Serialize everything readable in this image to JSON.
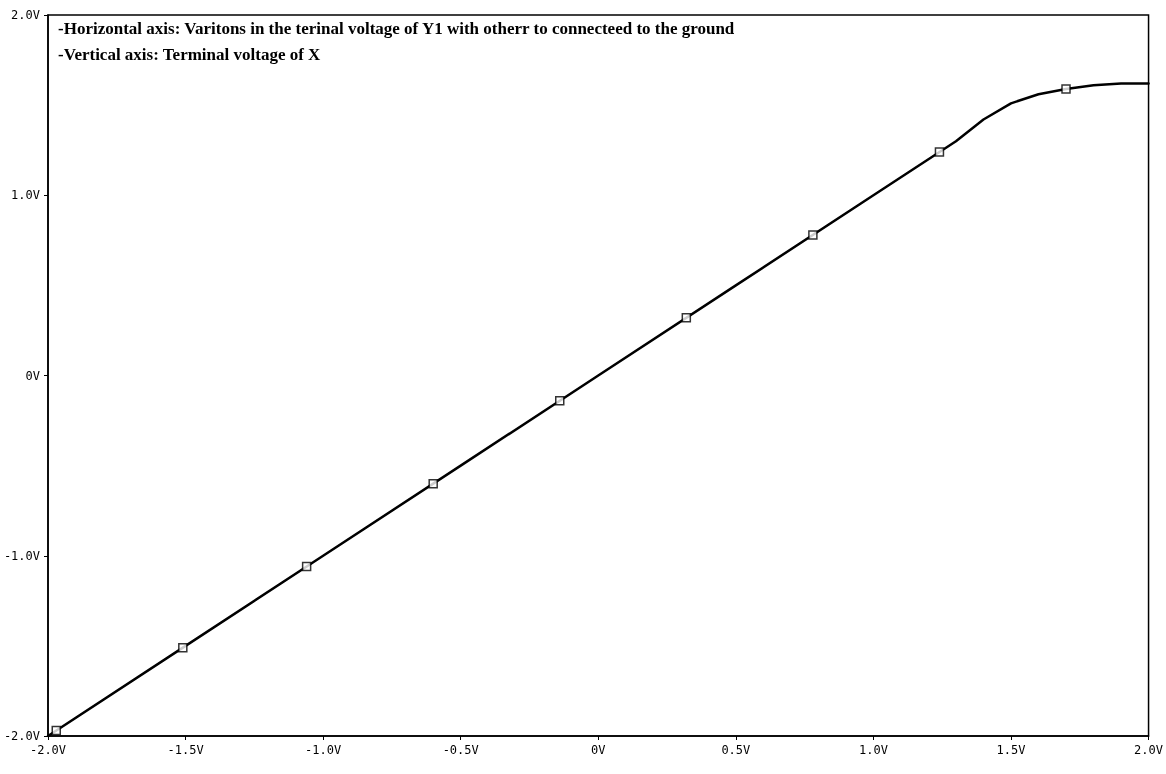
{
  "chart_data": {
    "type": "line",
    "annotations": [
      "-Horizontal axis: Varitons in the terinal voltage of Y1 with otherr to connecteed to the ground",
      "-Vertical axis: Terminal voltage of X"
    ],
    "xlim": [
      -2,
      2
    ],
    "xticks": [
      {
        "value": -2,
        "label": "-2.0V"
      },
      {
        "value": -1.5,
        "label": "-1.5V"
      },
      {
        "value": -1,
        "label": "-1.0V"
      },
      {
        "value": -0.5,
        "label": "-0.5V"
      },
      {
        "value": 0,
        "label": "0V"
      },
      {
        "value": 0.5,
        "label": "0.5V"
      },
      {
        "value": 1,
        "label": "1.0V"
      },
      {
        "value": 1.5,
        "label": "1.5V"
      },
      {
        "value": 2,
        "label": "2.0V"
      }
    ],
    "ylim": [
      -2,
      2
    ],
    "yticks": [
      {
        "value": -2,
        "label": "-2.0V"
      },
      {
        "value": -1,
        "label": "-1.0V"
      },
      {
        "value": 0,
        "label": "0V"
      },
      {
        "value": 1,
        "label": "1.0V"
      },
      {
        "value": 2,
        "label": "2.0V"
      }
    ],
    "grid": false,
    "line_style": "solid",
    "series": [
      {
        "color": "#000000",
        "marker": "none",
        "x": [
          -2,
          -1.5,
          -1,
          -0.5,
          0,
          0.5,
          1,
          1.3,
          1.4,
          1.5,
          1.6,
          1.7,
          1.8,
          1.9,
          2
        ],
        "values": [
          -2,
          -1.5,
          -1,
          -0.5,
          0,
          0.5,
          1,
          1.3,
          1.42,
          1.51,
          1.56,
          1.59,
          1.61,
          1.62,
          1.62
        ]
      },
      {
        "type": "scatter",
        "color": "#000000",
        "marker": "square",
        "x": [
          -1.97,
          -1.51,
          -1.06,
          -0.6,
          -0.14,
          0.32,
          0.78,
          1.24,
          1.7
        ],
        "values": [
          -1.97,
          -1.51,
          -1.06,
          -0.6,
          -0.14,
          0.32,
          0.78,
          1.24,
          1.59
        ]
      }
    ]
  }
}
